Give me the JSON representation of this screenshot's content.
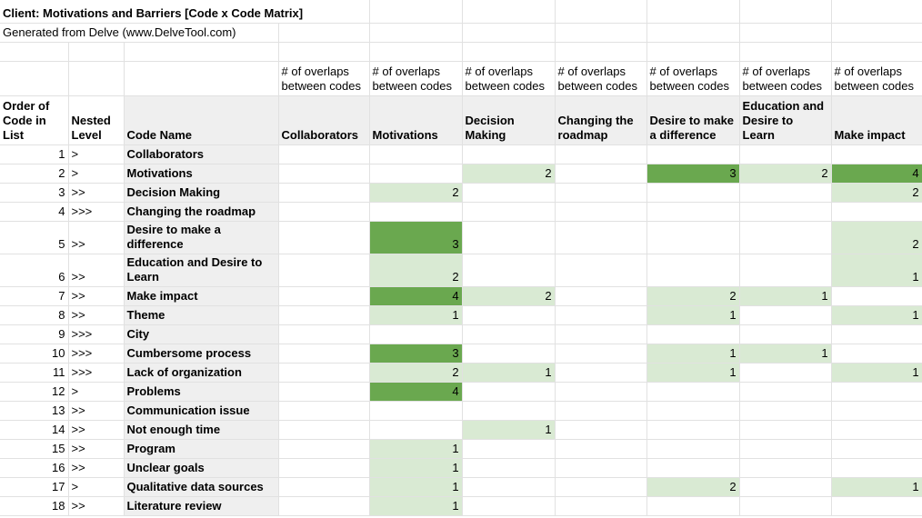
{
  "sheet": {
    "title": "Client: Motivations and Barriers [Code x Code Matrix]",
    "subtitle": "Generated from Delve (www.DelveTool.com)",
    "overlap_label": "# of overlaps between codes",
    "corner_headers": {
      "order": "Order of Code in List",
      "nested": "Nested Level",
      "code_name": "Code Name"
    },
    "code_columns": [
      "Collaborators",
      "Motivations",
      "Decision Making",
      "Changing the roadmap",
      "Desire to make a difference",
      "Education and Desire to Learn",
      "Make impact"
    ],
    "colors": {
      "value_low_green": "#d9ead3",
      "value_high_green": "#6aa84f",
      "header_gray": "#efefef",
      "gridline": "#e1e1e1"
    },
    "rows": [
      {
        "order": "1",
        "nested": ">",
        "name": "Collaborators",
        "values": [
          "",
          "",
          "",
          "",
          "",
          "",
          ""
        ]
      },
      {
        "order": "2",
        "nested": ">",
        "name": "Motivations",
        "values": [
          "",
          "",
          "2",
          "",
          "3",
          "2",
          "4"
        ]
      },
      {
        "order": "3",
        "nested": ">>",
        "name": "Decision Making",
        "values": [
          "",
          "2",
          "",
          "",
          "",
          "",
          "2"
        ]
      },
      {
        "order": "4",
        "nested": ">>>",
        "name": "Changing the roadmap",
        "values": [
          "",
          "",
          "",
          "",
          "",
          "",
          ""
        ]
      },
      {
        "order": "5",
        "nested": ">>",
        "name": "Desire to make a difference",
        "values": [
          "",
          "3",
          "",
          "",
          "",
          "",
          "2"
        ]
      },
      {
        "order": "6",
        "nested": ">>",
        "name": "Education and Desire to Learn",
        "values": [
          "",
          "2",
          "",
          "",
          "",
          "",
          "1"
        ]
      },
      {
        "order": "7",
        "nested": ">>",
        "name": "Make impact",
        "values": [
          "",
          "4",
          "2",
          "",
          "2",
          "1",
          ""
        ]
      },
      {
        "order": "8",
        "nested": ">>",
        "name": "Theme",
        "values": [
          "",
          "1",
          "",
          "",
          "1",
          "",
          "1"
        ]
      },
      {
        "order": "9",
        "nested": ">>>",
        "name": "City",
        "values": [
          "",
          "",
          "",
          "",
          "",
          "",
          ""
        ]
      },
      {
        "order": "10",
        "nested": ">>>",
        "name": "Cumbersome process",
        "values": [
          "",
          "3",
          "",
          "",
          "1",
          "1",
          ""
        ]
      },
      {
        "order": "11",
        "nested": ">>>",
        "name": "Lack of organization",
        "values": [
          "",
          "2",
          "1",
          "",
          "1",
          "",
          "1"
        ]
      },
      {
        "order": "12",
        "nested": ">",
        "name": "Problems",
        "values": [
          "",
          "4",
          "",
          "",
          "",
          "",
          ""
        ]
      },
      {
        "order": "13",
        "nested": ">>",
        "name": "Communication issue",
        "values": [
          "",
          "",
          "",
          "",
          "",
          "",
          ""
        ]
      },
      {
        "order": "14",
        "nested": ">>",
        "name": "Not enough time",
        "values": [
          "",
          "",
          "1",
          "",
          "",
          "",
          ""
        ]
      },
      {
        "order": "15",
        "nested": ">>",
        "name": "Program",
        "values": [
          "",
          "1",
          "",
          "",
          "",
          "",
          ""
        ]
      },
      {
        "order": "16",
        "nested": ">>",
        "name": "Unclear goals",
        "values": [
          "",
          "1",
          "",
          "",
          "",
          "",
          ""
        ]
      },
      {
        "order": "17",
        "nested": ">",
        "name": "Qualitative data sources",
        "values": [
          "",
          "1",
          "",
          "",
          "2",
          "",
          "1"
        ]
      },
      {
        "order": "18",
        "nested": ">>",
        "name": "Literature review",
        "values": [
          "",
          "1",
          "",
          "",
          "",
          "",
          ""
        ]
      }
    ]
  }
}
